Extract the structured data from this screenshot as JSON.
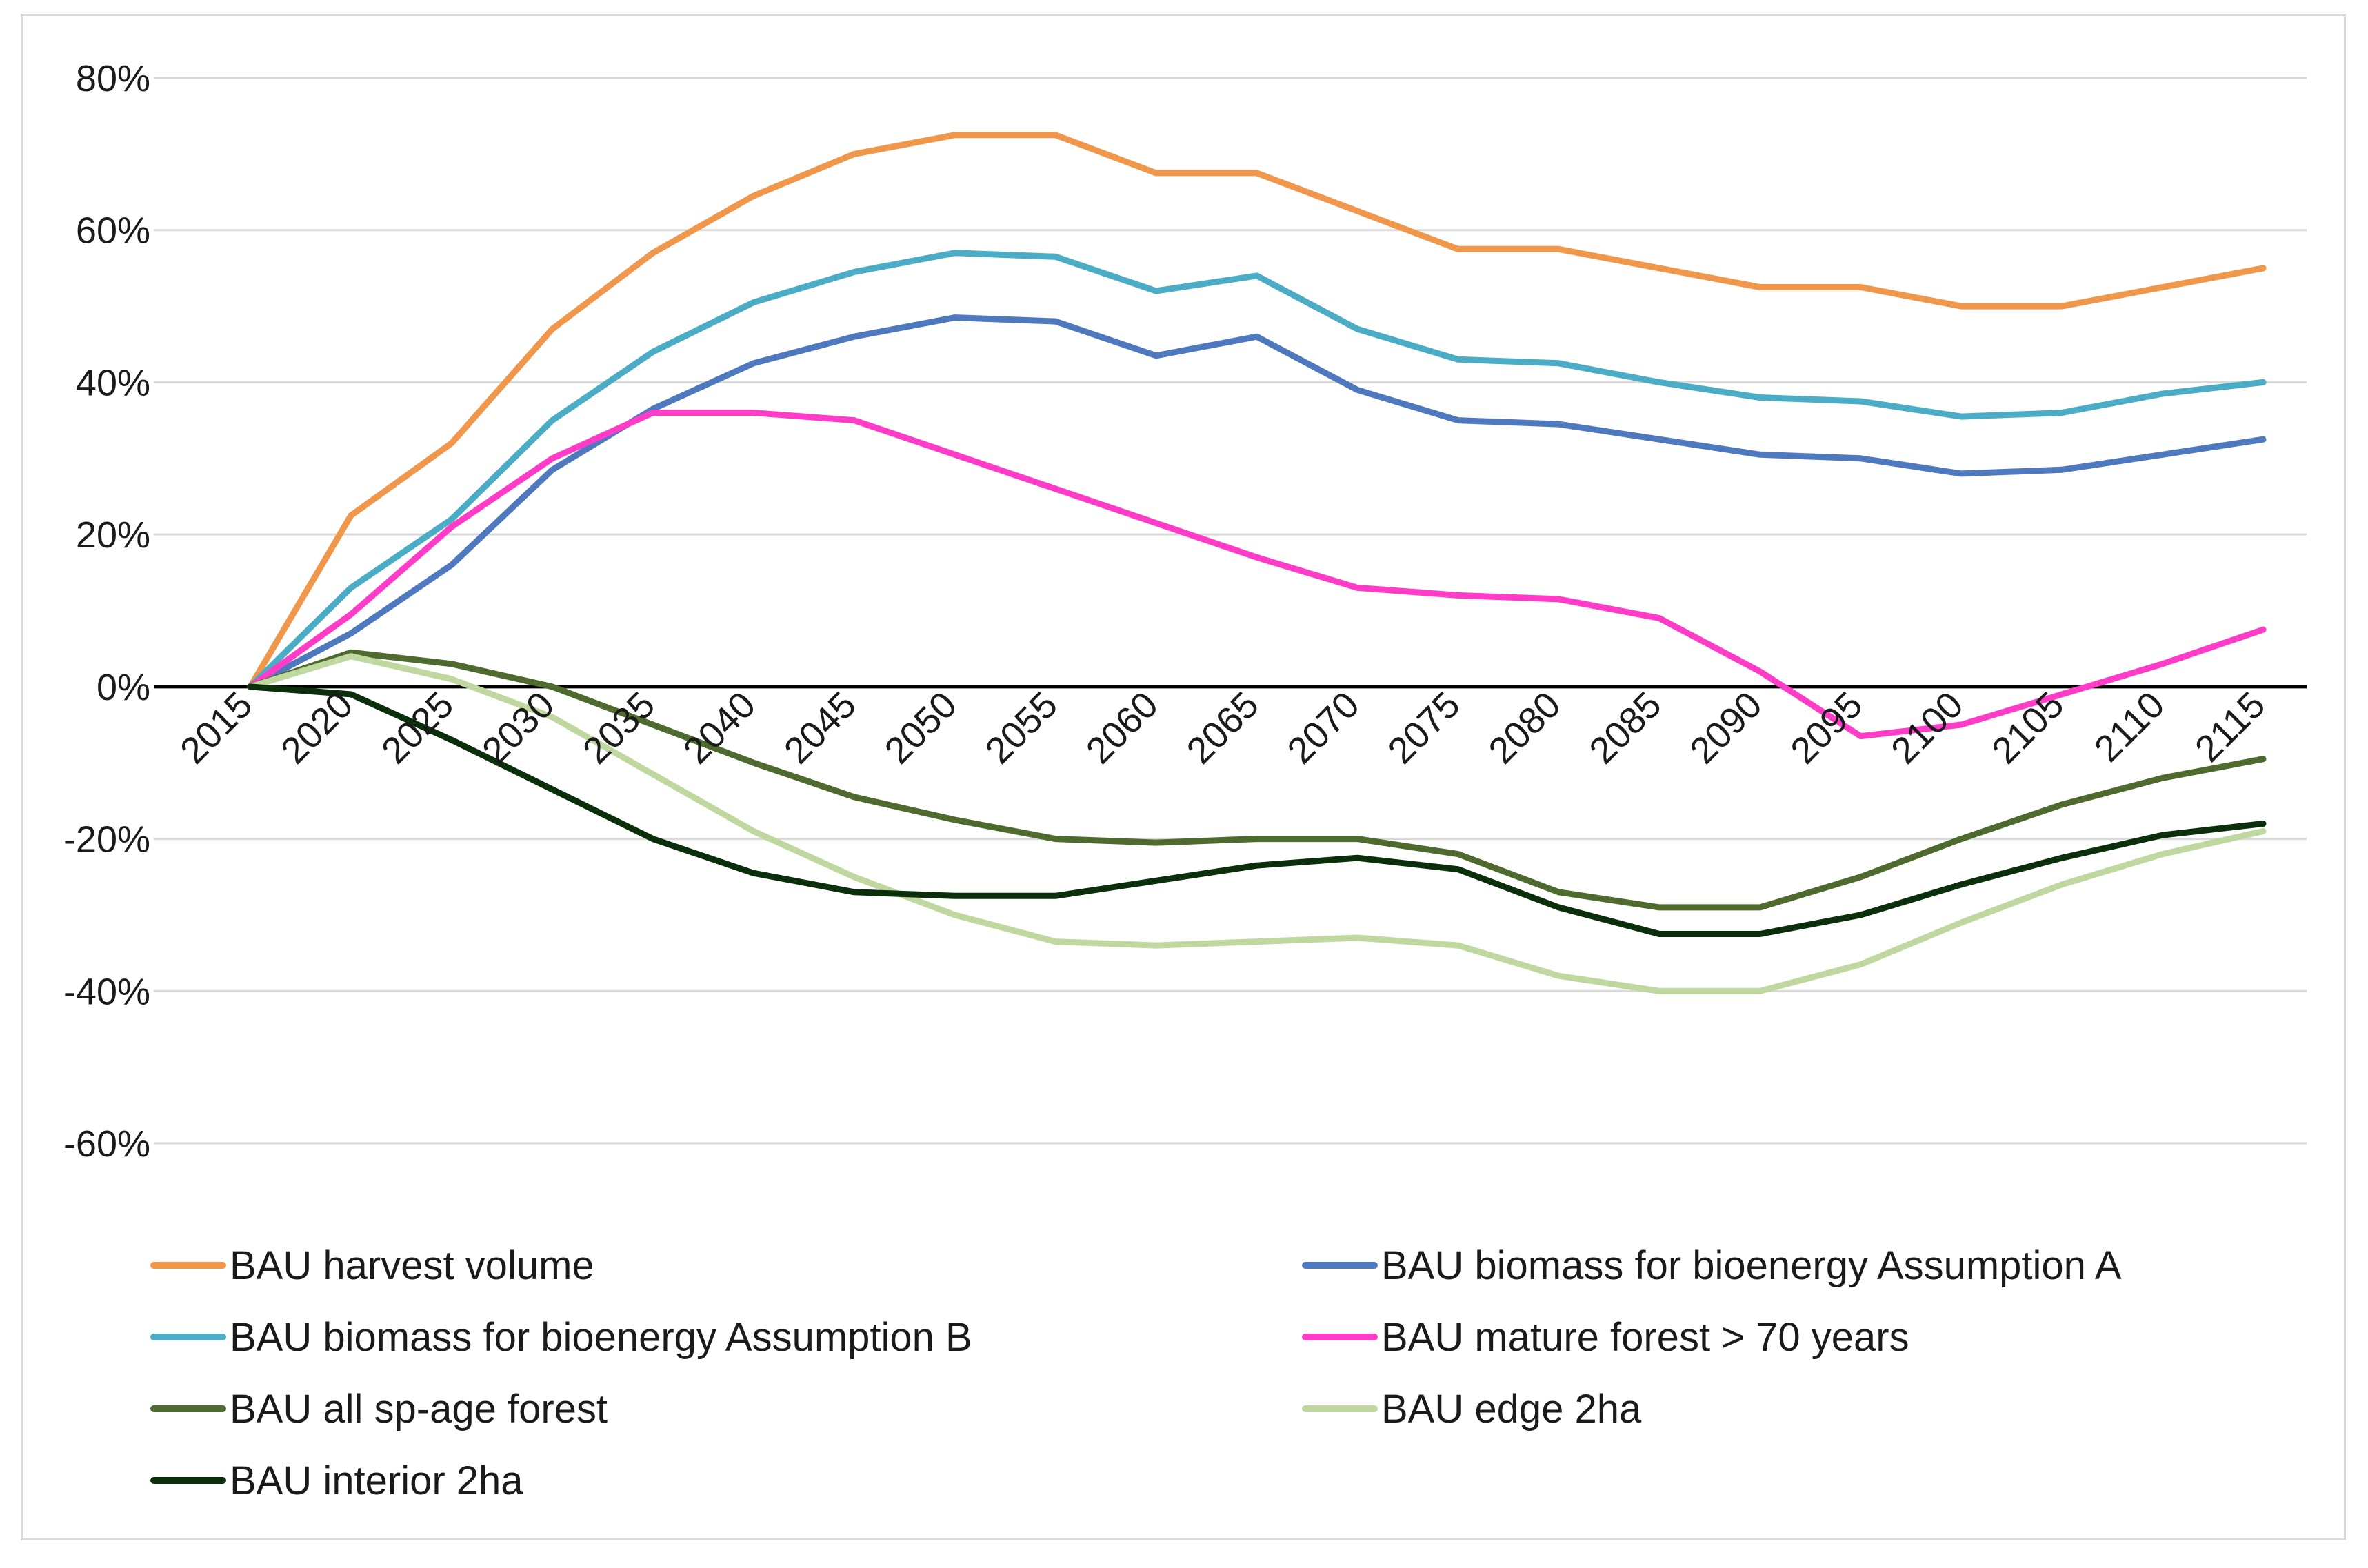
{
  "chart_data": {
    "type": "line",
    "title": "",
    "xlabel": "",
    "ylabel": "",
    "ylim": [
      -60,
      80
    ],
    "y_tick_step": 20,
    "y_tick_labels": [
      "80%",
      "60%",
      "40%",
      "20%",
      "0%",
      "-20%",
      "-40%",
      "-60%"
    ],
    "x": [
      "2015",
      "2020",
      "2025",
      "2030",
      "2035",
      "2040",
      "2045",
      "2050",
      "2055",
      "2060",
      "2065",
      "2070",
      "2075",
      "2080",
      "2085",
      "2090",
      "2095",
      "2100",
      "2105",
      "2110",
      "2115"
    ],
    "grid": true,
    "legend_position": "bottom",
    "series": [
      {
        "name": "BAU harvest volume",
        "color": "#F0974C",
        "values": [
          0,
          22.5,
          32,
          47,
          57,
          64.5,
          70,
          72.5,
          72.5,
          67.5,
          67.5,
          62.5,
          57.5,
          57.5,
          55,
          52.5,
          52.5,
          50,
          50,
          52.5,
          55
        ]
      },
      {
        "name": "BAU biomass for bioenergy Assumption A",
        "color": "#4E79BE",
        "values": [
          0,
          7,
          16,
          28.5,
          36.5,
          42.5,
          46,
          48.5,
          48,
          43.5,
          46,
          39,
          35,
          34.5,
          32.5,
          30.5,
          30,
          28,
          28.5,
          30.5,
          32.5
        ]
      },
      {
        "name": "BAU biomass for bioenergy Assumption B",
        "color": "#4BACC6",
        "values": [
          0,
          13,
          22,
          35,
          44,
          50.5,
          54.5,
          57,
          56.5,
          52,
          54,
          47,
          43,
          42.5,
          40,
          38,
          37.5,
          35.5,
          36,
          38.5,
          40
        ]
      },
      {
        "name": "BAU mature forest > 70 years",
        "color": "#FF3CC8",
        "values": [
          0,
          9.5,
          21,
          30,
          36,
          36,
          35,
          30.5,
          26,
          21.5,
          17,
          13,
          12,
          11.5,
          9,
          2,
          -6.5,
          -5,
          -1,
          3,
          7.5
        ]
      },
      {
        "name": "BAU all sp-age forest",
        "color": "#4E6A2E",
        "values": [
          0,
          4.5,
          3,
          0,
          -5,
          -10,
          -14.5,
          -17.5,
          -20,
          -20.5,
          -20,
          -20,
          -22,
          -27,
          -29,
          -29,
          -25,
          -20,
          -15.5,
          -12,
          -9.5
        ]
      },
      {
        "name": "BAU edge 2ha",
        "color": "#BFD8A0",
        "values": [
          0,
          4,
          1,
          -4,
          -11.5,
          -19,
          -25,
          -30,
          -33.5,
          -34,
          -33.5,
          -33,
          -34,
          -38,
          -40,
          -40,
          -36.5,
          -31,
          -26,
          -22,
          -19
        ]
      },
      {
        "name": "BAU interior 2ha",
        "color": "#0B2E0B",
        "values": [
          0,
          -1,
          -7,
          -13.5,
          -20,
          -24.5,
          -27,
          -27.5,
          -27.5,
          -25.5,
          -23.5,
          -22.5,
          -24,
          -29,
          -32.5,
          -32.5,
          -30,
          -26,
          -22.5,
          -19.5,
          -18
        ]
      }
    ]
  }
}
